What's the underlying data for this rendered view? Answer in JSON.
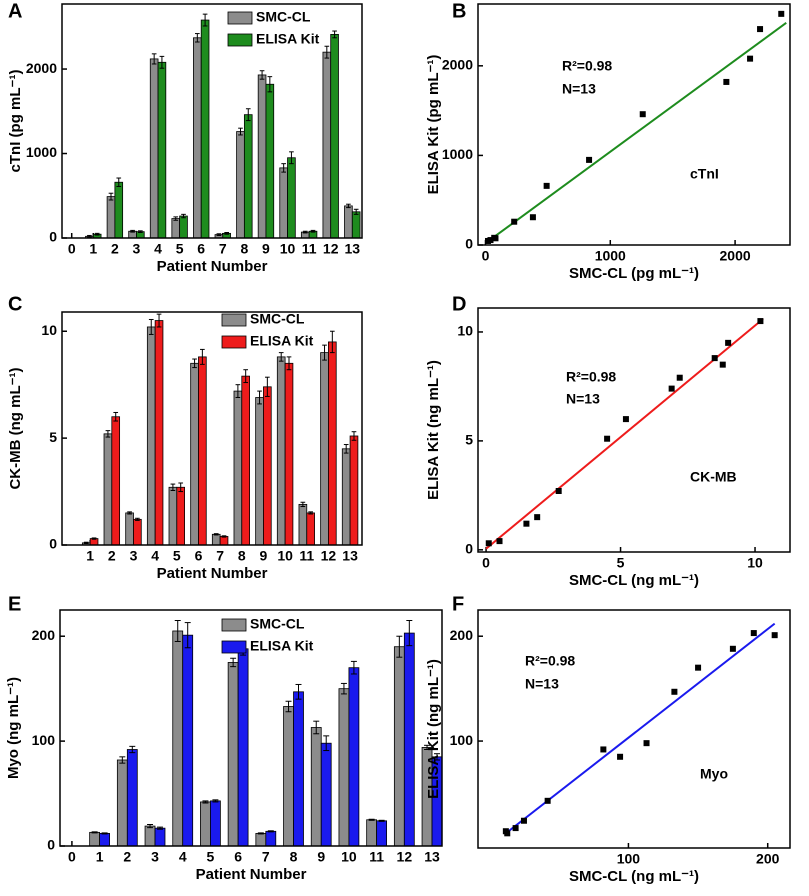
{
  "chart_data": [
    {
      "panel": "A",
      "type": "bar",
      "xlabel": "Patient Number",
      "ylabel": "cTnI (pg mL⁻¹)",
      "x": [
        1,
        2,
        3,
        4,
        5,
        6,
        7,
        8,
        9,
        10,
        11,
        12,
        13
      ],
      "xlim": [
        -0.45,
        13.45
      ],
      "xticks": [
        0,
        1,
        2,
        3,
        4,
        5,
        6,
        7,
        8,
        9,
        10,
        11,
        12,
        13
      ],
      "ylim": [
        0,
        2770
      ],
      "yticks": [
        0,
        1000,
        2000
      ],
      "legend": "top",
      "series": [
        {
          "name": "SMC-CL",
          "color": "#8c8c8c",
          "values": [
            20,
            490,
            80,
            2120,
            230,
            2370,
            40,
            1260,
            1930,
            830,
            70,
            2200,
            380
          ],
          "errors": [
            10,
            40,
            10,
            60,
            20,
            50,
            10,
            40,
            50,
            50,
            10,
            70,
            20
          ]
        },
        {
          "name": "ELISA Kit",
          "color": "#1e8c1e",
          "values": [
            45,
            660,
            75,
            2080,
            260,
            2580,
            55,
            1460,
            1820,
            950,
            80,
            2410,
            310
          ],
          "errors": [
            10,
            50,
            10,
            70,
            20,
            70,
            10,
            70,
            90,
            70,
            10,
            40,
            30
          ]
        }
      ]
    },
    {
      "panel": "B",
      "type": "scatter",
      "xlabel": "SMC-CL (pg mL⁻¹)",
      "ylabel": "ELISA Kit (pg mL⁻¹)",
      "x": [
        20,
        490,
        80,
        2120,
        230,
        2370,
        40,
        1260,
        1930,
        830,
        70,
        2200,
        380
      ],
      "values": [
        45,
        660,
        75,
        2080,
        260,
        2580,
        55,
        1460,
        1820,
        950,
        80,
        2410,
        310
      ],
      "color": "#000000",
      "xlim": [
        -60,
        2440
      ],
      "xticks": [
        0,
        1000,
        2000
      ],
      "ylim": [
        0,
        2690
      ],
      "yticks": [
        0,
        1000,
        2000
      ],
      "fit": {
        "x": [
          0,
          2410
        ],
        "y": [
          20,
          2480
        ],
        "color": "#1e8c1e"
      },
      "annotations": [
        "R²=0.98",
        "N=13",
        "cTnI"
      ]
    },
    {
      "panel": "C",
      "type": "bar",
      "xlabel": "Patient Number",
      "ylabel": "CK-MB (ng mL⁻¹)",
      "x": [
        1,
        2,
        3,
        4,
        5,
        6,
        7,
        8,
        9,
        10,
        11,
        12,
        13
      ],
      "xlim": [
        -0.3,
        13.55
      ],
      "xticks": [
        1,
        2,
        3,
        4,
        5,
        6,
        7,
        8,
        9,
        10,
        11,
        12,
        13
      ],
      "ylim": [
        0,
        10.9
      ],
      "yticks": [
        0,
        5,
        10
      ],
      "legend": "top",
      "series": [
        {
          "name": "SMC-CL",
          "color": "#8c8c8c",
          "values": [
            0.1,
            5.2,
            1.5,
            10.2,
            2.7,
            8.5,
            0.5,
            7.2,
            6.9,
            8.8,
            1.9,
            9.0,
            4.5
          ],
          "errors": [
            0.03,
            0.15,
            0.05,
            0.35,
            0.15,
            0.2,
            0.03,
            0.3,
            0.3,
            0.2,
            0.1,
            0.35,
            0.2
          ]
        },
        {
          "name": "ELISA Kit",
          "color": "#ee1c1c",
          "values": [
            0.3,
            6.0,
            1.2,
            10.5,
            2.7,
            8.8,
            0.4,
            7.9,
            7.4,
            8.5,
            1.5,
            9.5,
            5.1
          ],
          "errors": [
            0.03,
            0.2,
            0.05,
            0.3,
            0.2,
            0.35,
            0.03,
            0.3,
            0.45,
            0.3,
            0.05,
            0.5,
            0.2
          ]
        }
      ]
    },
    {
      "panel": "D",
      "type": "scatter",
      "xlabel": "SMC-CL (ng mL⁻¹)",
      "ylabel": "ELISA Kit (ng mL⁻¹)",
      "x": [
        0.1,
        5.2,
        1.5,
        10.2,
        2.7,
        8.5,
        0.5,
        7.2,
        6.9,
        8.8,
        1.9,
        9.0,
        4.5
      ],
      "values": [
        0.3,
        6.0,
        1.2,
        10.5,
        2.7,
        8.8,
        0.4,
        7.9,
        7.4,
        8.5,
        1.5,
        9.5,
        5.1
      ],
      "color": "#000000",
      "xlim": [
        -0.3,
        11.3
      ],
      "xticks": [
        0,
        5,
        10
      ],
      "ylim": [
        -0.1,
        11.1
      ],
      "yticks": [
        0,
        5,
        10
      ],
      "fit": {
        "x": [
          0,
          10.3
        ],
        "y": [
          0.05,
          10.6
        ],
        "color": "#ee1c1c"
      },
      "annotations": [
        "R²=0.98",
        "N=13",
        "CK-MB"
      ]
    },
    {
      "panel": "E",
      "type": "bar",
      "xlabel": "Patient Number",
      "ylabel": "Myo (ng mL⁻¹)",
      "x": [
        1,
        2,
        3,
        4,
        5,
        6,
        7,
        8,
        9,
        10,
        11,
        12,
        13
      ],
      "xlim": [
        -0.43,
        13.36
      ],
      "xticks": [
        0,
        1,
        2,
        3,
        4,
        5,
        6,
        7,
        8,
        9,
        10,
        11,
        12,
        13
      ],
      "ylim": [
        0,
        225
      ],
      "yticks": [
        0,
        100,
        200
      ],
      "legend": "top",
      "series": [
        {
          "name": "SMC-CL",
          "color": "#8c8c8c",
          "values": [
            13,
            82,
            19,
            205,
            42,
            175,
            12,
            133,
            113,
            150,
            25,
            190,
            94
          ],
          "errors": [
            0.5,
            3,
            1.5,
            10,
            1,
            4,
            0.5,
            5,
            6,
            5,
            0.5,
            10,
            2
          ]
        },
        {
          "name": "ELISA Kit",
          "color": "#1a1aee",
          "values": [
            12,
            92,
            17,
            201,
            43,
            188,
            14,
            147,
            98,
            170,
            24,
            203,
            85
          ],
          "errors": [
            0.5,
            3,
            1,
            12,
            1,
            6,
            0.5,
            7,
            7,
            6,
            0.5,
            12,
            3
          ]
        }
      ]
    },
    {
      "panel": "F",
      "type": "scatter",
      "xlabel": "SMC-CL (ng mL⁻¹)",
      "ylabel": "ELISA Kit (ng mL⁻¹)",
      "x": [
        13,
        82,
        19,
        205,
        42,
        175,
        12,
        133,
        113,
        150,
        25,
        190,
        94
      ],
      "values": [
        12,
        92,
        17,
        201,
        43,
        188,
        14,
        147,
        98,
        170,
        24,
        203,
        85
      ],
      "color": "#000000",
      "xlim": [
        -8,
        216
      ],
      "xticks": [
        100,
        200
      ],
      "ylim": [
        -2,
        225
      ],
      "yticks": [
        100,
        200
      ],
      "fit": {
        "x": [
          12,
          205
        ],
        "y": [
          12,
          212
        ],
        "color": "#1a1aee"
      },
      "annotations": [
        "R²=0.98",
        "N=13",
        "Myo"
      ]
    }
  ]
}
